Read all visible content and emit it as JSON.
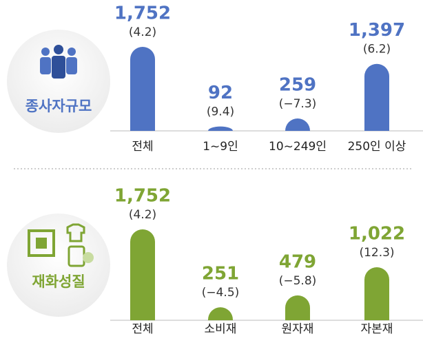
{
  "chart_data": [
    {
      "type": "bar",
      "title": "종사자규모",
      "categories": [
        "전체",
        "1~9인",
        "10~249인",
        "250인 이상"
      ],
      "values": [
        1752,
        92,
        259,
        1397
      ],
      "value_labels": [
        "1,752",
        "92",
        "259",
        "1,397"
      ],
      "change_labels": [
        "(4.2)",
        "(9.4)",
        "(−7.3)",
        "(6.2)"
      ],
      "color": "#4f73c3"
    },
    {
      "type": "bar",
      "title": "재화성질",
      "categories": [
        "전체",
        "소비재",
        "원자재",
        "자본재"
      ],
      "values": [
        1752,
        251,
        479,
        1022
      ],
      "value_labels": [
        "1,752",
        "251",
        "479",
        "1,022"
      ],
      "change_labels": [
        "(4.2)",
        "(−4.5)",
        "(−5.8)",
        "(12.3)"
      ],
      "color": "#7fa534"
    }
  ]
}
